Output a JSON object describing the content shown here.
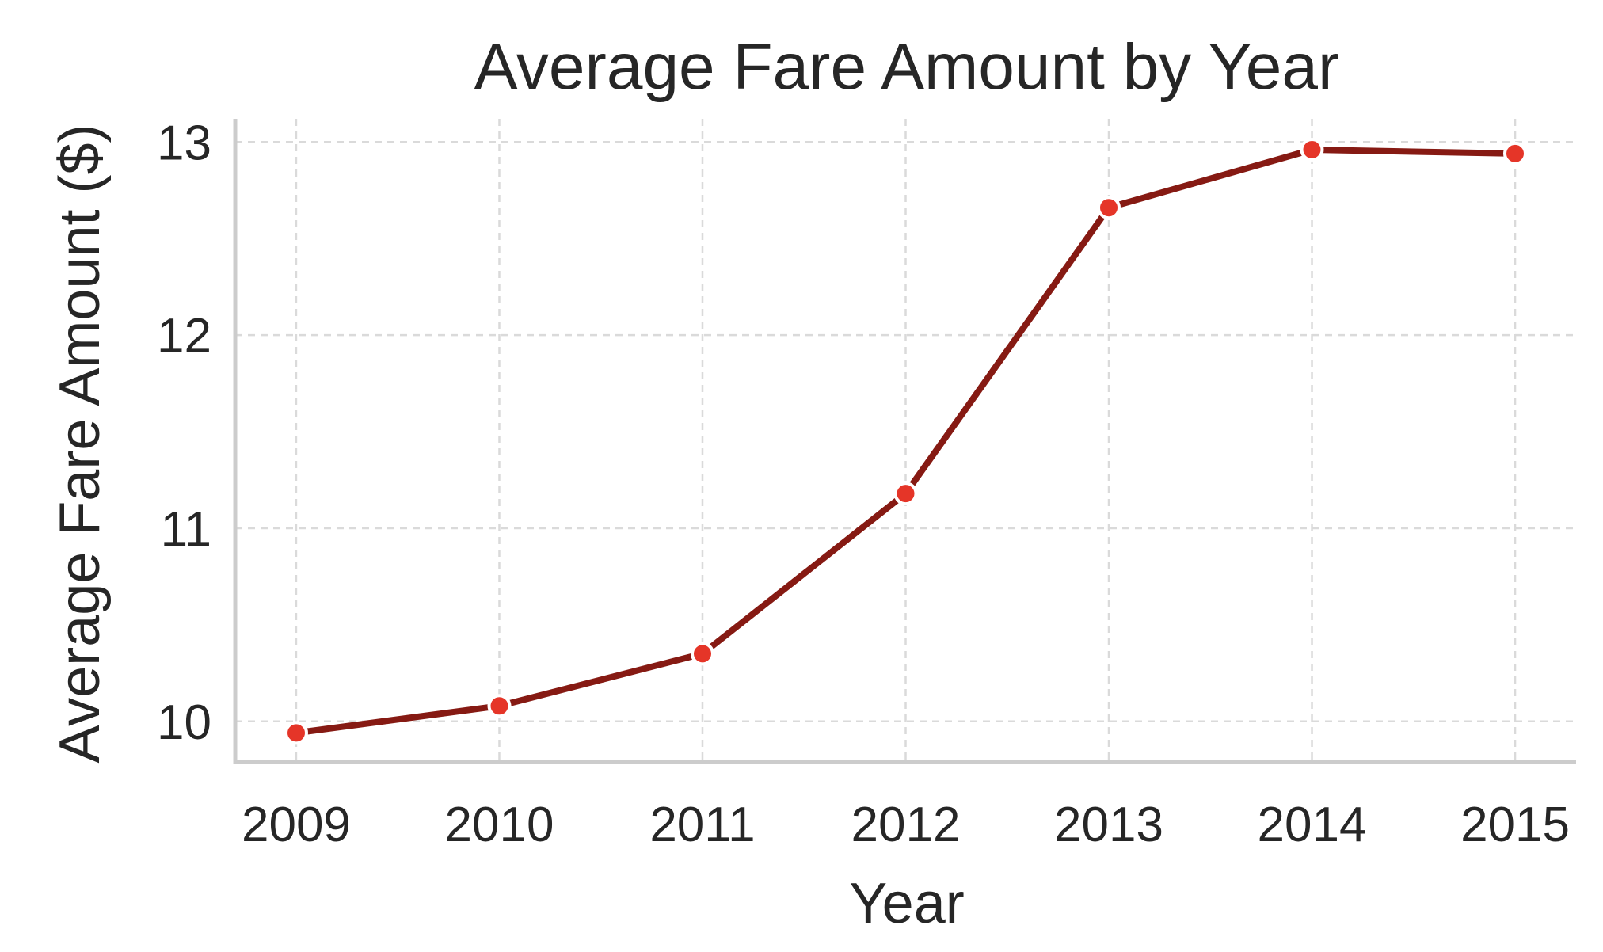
{
  "chart_data": {
    "type": "line",
    "title": "Average Fare Amount by Year",
    "xlabel": "Year",
    "ylabel": "Average Fare Amount ($)",
    "x": [
      2009,
      2010,
      2011,
      2012,
      2013,
      2014,
      2015
    ],
    "series": [
      {
        "values": [
          9.94,
          10.08,
          10.35,
          11.18,
          12.66,
          12.96,
          12.94
        ]
      }
    ],
    "x_ticks": [
      "2009",
      "2010",
      "2011",
      "2012",
      "2013",
      "2014",
      "2015"
    ],
    "y_ticks": [
      "10",
      "11",
      "12",
      "13"
    ],
    "xlim": [
      2008.7,
      2015.3
    ],
    "ylim": [
      9.79,
      13.12
    ],
    "grid": true,
    "grid_style": "dashed",
    "line_color": "#861a13",
    "marker_color": "#e53528",
    "marker_edge_color": "#ffffff"
  }
}
